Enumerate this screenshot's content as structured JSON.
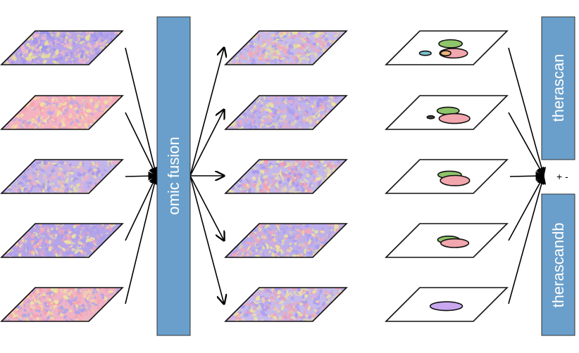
{
  "diagram": {
    "fusion_bar": {
      "label": "omic fusion",
      "color": "#6a9fcb"
    },
    "right_bars": [
      {
        "label": "therascan",
        "color": "#6a9fcb"
      },
      {
        "label": "therascandb",
        "color": "#6a9fcb"
      }
    ],
    "operator_text": "+ -",
    "input_layers": [
      {
        "palette": [
          "#b9a6e6",
          "#9b93ee",
          "#f0b8c8",
          "#e7e29a"
        ]
      },
      {
        "palette": [
          "#f4b3c0",
          "#b8a8ea",
          "#f1e3a3",
          "#f4a3b3"
        ]
      },
      {
        "palette": [
          "#c3b5ea",
          "#a59ae9",
          "#ece39f",
          "#f0b2c2"
        ]
      },
      {
        "palette": [
          "#b4a4e8",
          "#f2a8bb",
          "#a79cec",
          "#efe4a5"
        ]
      },
      {
        "palette": [
          "#f0b3c4",
          "#aea2ea",
          "#eee4a1",
          "#f49fb2"
        ]
      }
    ],
    "fused_layers": [
      {
        "palette": [
          "#c7bce9",
          "#e9e09a",
          "#f3a6b8",
          "#ab9ff0"
        ]
      },
      {
        "palette": [
          "#c0b3ea",
          "#ece49f",
          "#f2aabb",
          "#a99cee"
        ]
      },
      {
        "palette": [
          "#c4b8ea",
          "#eee4a1",
          "#f39fb2",
          "#a497ee"
        ]
      },
      {
        "palette": [
          "#bdb0ea",
          "#ece39f",
          "#f2a8b9",
          "#aa9fee"
        ]
      },
      {
        "palette": [
          "#c6bbea",
          "#efe5a2",
          "#f2a2b4",
          "#a99df0"
        ]
      }
    ],
    "blob_layers": [
      {
        "blobs": [
          {
            "color": "#8fc46a",
            "rx": 0.32,
            "ry": 0.22
          },
          {
            "color": "#f2a6ad",
            "rx": 0.38,
            "ry": 0.26
          },
          {
            "color": "#7ac3d0",
            "rx": 0.16,
            "ry": 0.12
          },
          {
            "color": "#f0b57a",
            "rx": 0.14,
            "ry": 0.14
          }
        ]
      },
      {
        "blobs": [
          {
            "color": "#8fc46a",
            "rx": 0.3,
            "ry": 0.2
          },
          {
            "color": "#f2a6ad",
            "rx": 0.42,
            "ry": 0.27
          },
          {
            "color": "#444444",
            "rx": 0.1,
            "ry": 0.08
          }
        ]
      },
      {
        "blobs": [
          {
            "color": "#8fc46a",
            "rx": 0.32,
            "ry": 0.2
          },
          {
            "color": "#f2a6ad",
            "rx": 0.4,
            "ry": 0.28
          }
        ]
      },
      {
        "blobs": [
          {
            "color": "#8fc46a",
            "rx": 0.3,
            "ry": 0.2
          },
          {
            "color": "#f2a6ad",
            "rx": 0.38,
            "ry": 0.24
          }
        ]
      },
      {
        "blobs": [
          {
            "color": "#c9a8f0",
            "rx": 0.44,
            "ry": 0.24
          }
        ]
      }
    ]
  }
}
